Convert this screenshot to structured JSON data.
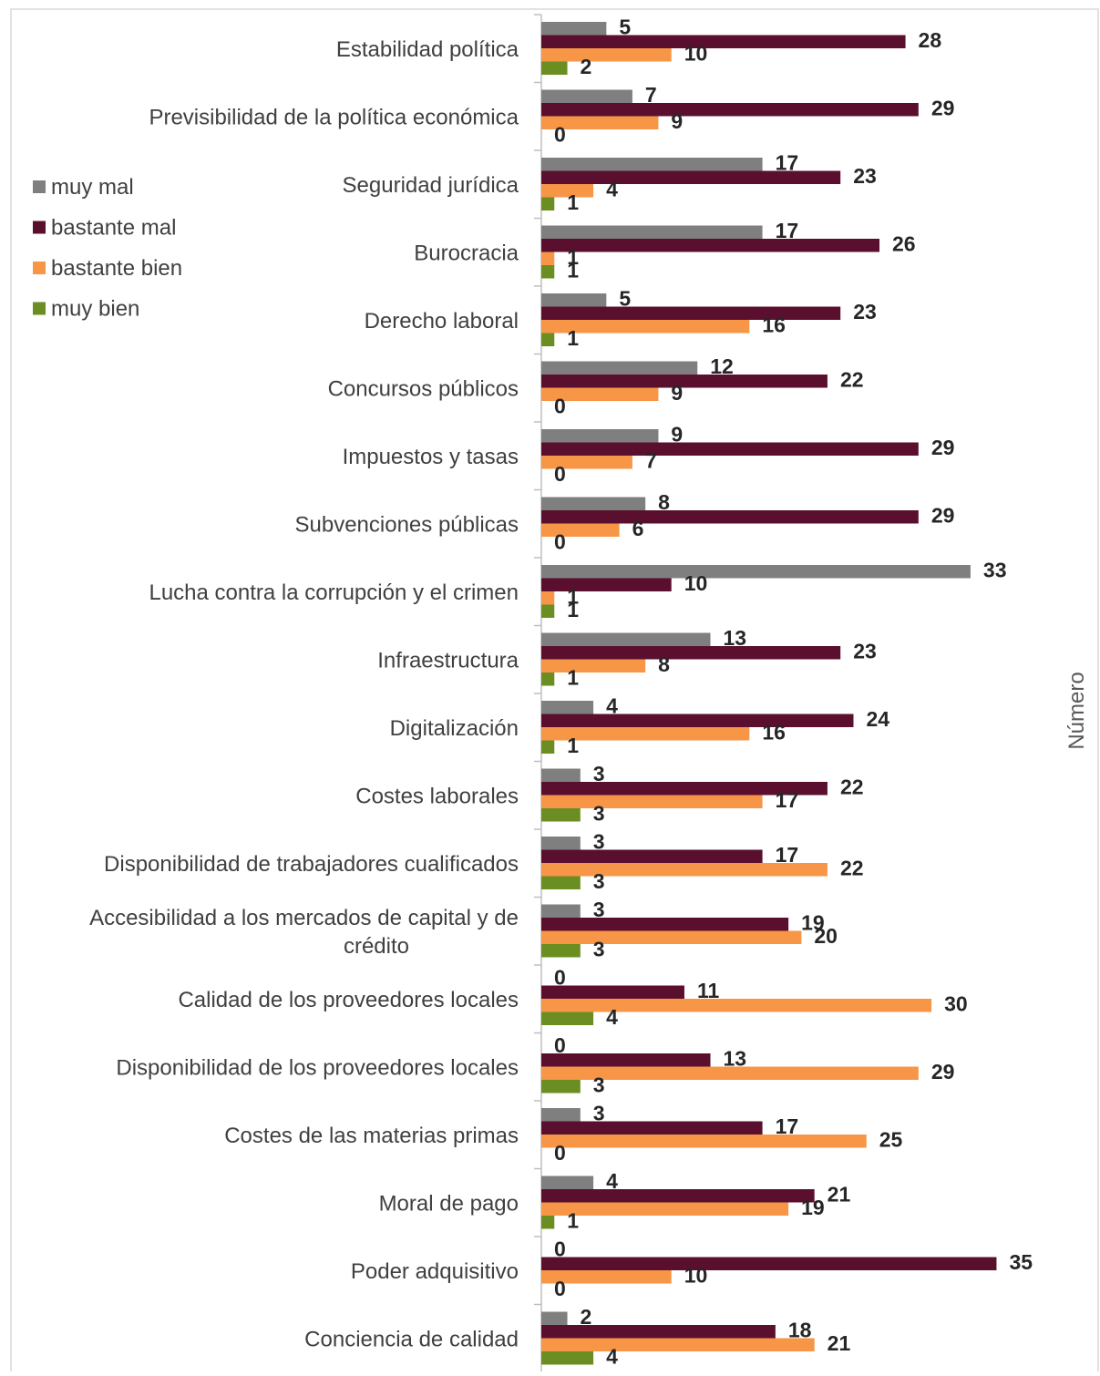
{
  "chart_data": {
    "type": "bar",
    "orientation": "horizontal",
    "title": "",
    "xlabel": "",
    "ylabel": "Número",
    "grid": false,
    "legend_position": "left",
    "data_labels": true,
    "xlim": [
      0,
      35
    ],
    "categories": [
      [
        "Estabilidad política"
      ],
      [
        "Previsibilidad de la política económica"
      ],
      [
        "Seguridad jurídica"
      ],
      [
        "Burocracia"
      ],
      [
        "Derecho laboral"
      ],
      [
        "Concursos públicos"
      ],
      [
        "Impuestos y tasas"
      ],
      [
        "Subvenciones públicas"
      ],
      [
        "Lucha contra la corrupción y el crimen"
      ],
      [
        "Infraestructura"
      ],
      [
        "Digitalización"
      ],
      [
        "Costes laborales"
      ],
      [
        "Disponibilidad de trabajadores cualificados"
      ],
      [
        "Accesibilidad a los mercados de capital y de",
        "crédito"
      ],
      [
        "Calidad de los proveedores locales"
      ],
      [
        "Disponibilidad de los proveedores locales"
      ],
      [
        "Costes de las materias primas"
      ],
      [
        "Moral de pago"
      ],
      [
        "Poder adquisitivo"
      ],
      [
        "Conciencia de calidad"
      ]
    ],
    "series": [
      {
        "name": "muy mal",
        "color": "#7f7f7f",
        "values": [
          5,
          7,
          17,
          17,
          5,
          12,
          9,
          8,
          33,
          13,
          4,
          3,
          3,
          3,
          0,
          0,
          3,
          4,
          0,
          2
        ]
      },
      {
        "name": "bastante mal",
        "color": "#5b0f2e",
        "values": [
          28,
          29,
          23,
          26,
          23,
          22,
          29,
          29,
          10,
          23,
          24,
          22,
          17,
          19,
          11,
          13,
          17,
          21,
          35,
          18
        ]
      },
      {
        "name": "bastante bien",
        "color": "#f79646",
        "values": [
          10,
          9,
          4,
          1,
          16,
          9,
          7,
          6,
          1,
          8,
          16,
          17,
          22,
          20,
          30,
          29,
          25,
          19,
          10,
          21
        ]
      },
      {
        "name": "muy bien",
        "color": "#6b8e23",
        "values": [
          2,
          0,
          1,
          1,
          1,
          0,
          0,
          0,
          1,
          1,
          1,
          3,
          3,
          3,
          4,
          3,
          0,
          1,
          0,
          4
        ]
      }
    ]
  }
}
